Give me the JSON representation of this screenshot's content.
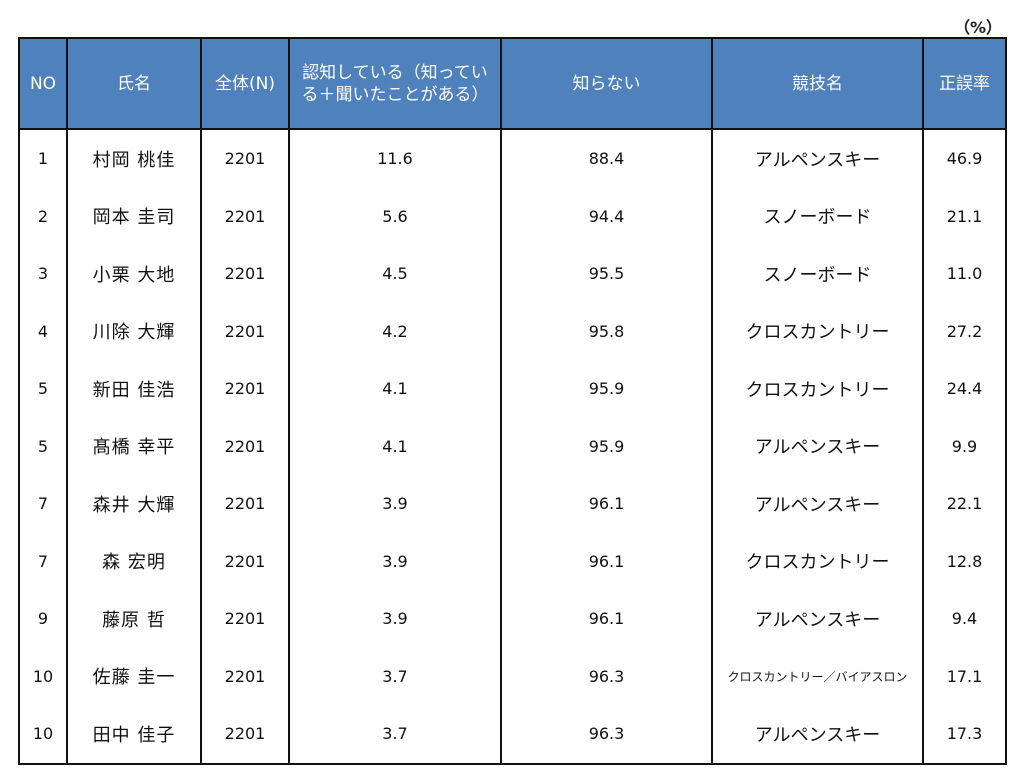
{
  "unit_label": "（%）",
  "table": {
    "headers": {
      "no": "NO",
      "name": "氏名",
      "total": "全体(N)",
      "aware": "認知している（知っている＋聞いたことがある）",
      "unaware": "知らない",
      "sport": "競技名",
      "accuracy": "正誤率"
    },
    "header_color": "#4f81bd",
    "rows": [
      {
        "no": "1",
        "name": "村岡 桃佳",
        "total": "2201",
        "aware": "11.6",
        "unaware": "88.4",
        "sport": "アルペンスキー",
        "accuracy": "46.9"
      },
      {
        "no": "2",
        "name": "岡本 圭司",
        "total": "2201",
        "aware": "5.6",
        "unaware": "94.4",
        "sport": "スノーボード",
        "accuracy": "21.1"
      },
      {
        "no": "3",
        "name": "小栗 大地",
        "total": "2201",
        "aware": "4.5",
        "unaware": "95.5",
        "sport": "スノーボード",
        "accuracy": "11.0"
      },
      {
        "no": "4",
        "name": "川除 大輝",
        "total": "2201",
        "aware": "4.2",
        "unaware": "95.8",
        "sport": "クロスカントリー",
        "accuracy": "27.2"
      },
      {
        "no": "5",
        "name": "新田 佳浩",
        "total": "2201",
        "aware": "4.1",
        "unaware": "95.9",
        "sport": "クロスカントリー",
        "accuracy": "24.4"
      },
      {
        "no": "5",
        "name": "髙橋 幸平",
        "total": "2201",
        "aware": "4.1",
        "unaware": "95.9",
        "sport": "アルペンスキー",
        "accuracy": "9.9"
      },
      {
        "no": "7",
        "name": "森井 大輝",
        "total": "2201",
        "aware": "3.9",
        "unaware": "96.1",
        "sport": "アルペンスキー",
        "accuracy": "22.1"
      },
      {
        "no": "7",
        "name": "森 宏明",
        "total": "2201",
        "aware": "3.9",
        "unaware": "96.1",
        "sport": "クロスカントリー",
        "accuracy": "12.8"
      },
      {
        "no": "9",
        "name": "藤原 哲",
        "total": "2201",
        "aware": "3.9",
        "unaware": "96.1",
        "sport": "アルペンスキー",
        "accuracy": "9.4"
      },
      {
        "no": "10",
        "name": "佐藤 圭一",
        "total": "2201",
        "aware": "3.7",
        "unaware": "96.3",
        "sport": "クロスカントリー／バイアスロン",
        "accuracy": "17.1"
      },
      {
        "no": "10",
        "name": "田中 佳子",
        "total": "2201",
        "aware": "3.7",
        "unaware": "96.3",
        "sport": "アルペンスキー",
        "accuracy": "17.3"
      }
    ]
  }
}
